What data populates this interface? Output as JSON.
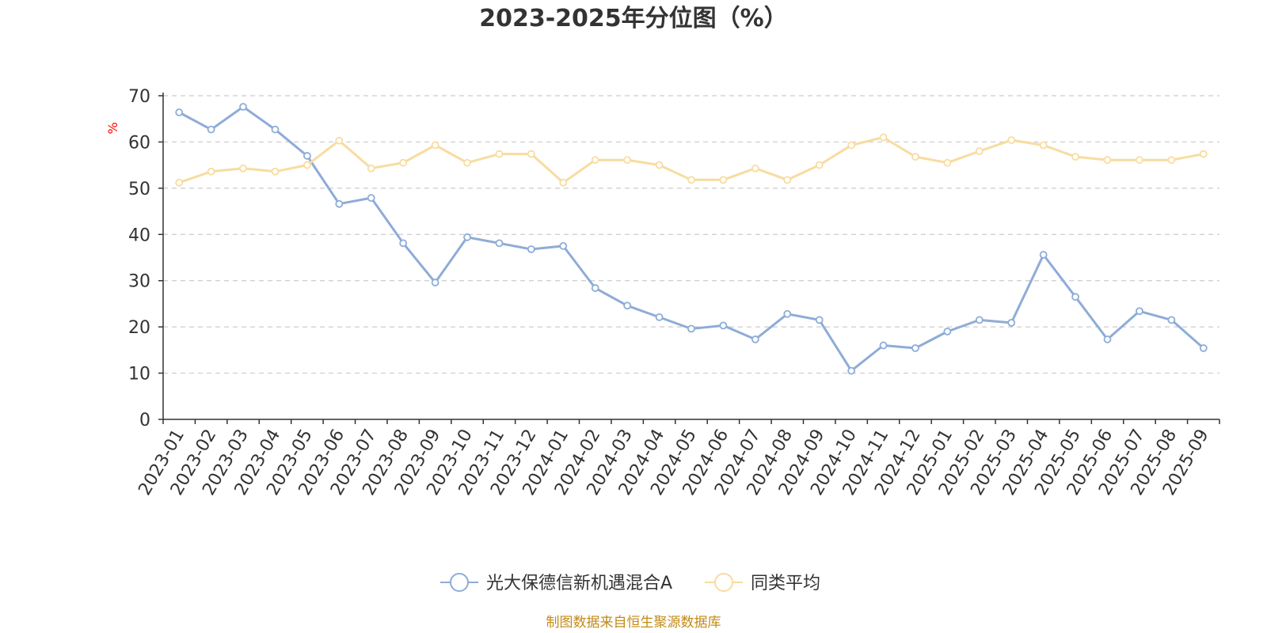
{
  "chart_data": {
    "type": "line",
    "title": "2023-2025年分位图（%）",
    "ylabel": "%",
    "xlabel": "",
    "ylim": [
      0,
      70
    ],
    "yticks": [
      0,
      10,
      20,
      30,
      40,
      50,
      60,
      70
    ],
    "grid": true,
    "legend_position": "bottom-center",
    "categories": [
      "2023-01",
      "2023-02",
      "2023-03",
      "2023-04",
      "2023-05",
      "2023-06",
      "2023-07",
      "2023-08",
      "2023-09",
      "2023-10",
      "2023-11",
      "2023-12",
      "2024-01",
      "2024-02",
      "2024-03",
      "2024-04",
      "2024-05",
      "2024-06",
      "2024-07",
      "2024-08",
      "2024-09",
      "2024-10",
      "2024-11",
      "2024-12",
      "2025-01",
      "2025-02",
      "2025-03",
      "2025-04",
      "2025-05",
      "2025-06",
      "2025-07",
      "2025-08",
      "2025-09"
    ],
    "series": [
      {
        "name": "光大保德信新机遇混合A",
        "color": "#8eacd8",
        "values": [
          66.4,
          62.7,
          67.6,
          62.7,
          57.0,
          46.6,
          47.9,
          38.1,
          29.6,
          39.4,
          38.1,
          36.8,
          37.5,
          28.4,
          24.6,
          22.1,
          19.6,
          20.3,
          17.3,
          22.8,
          21.5,
          10.5,
          16.0,
          15.4,
          19.0,
          21.5,
          20.9,
          35.6,
          26.5,
          17.3,
          23.4,
          21.5,
          15.4
        ]
      },
      {
        "name": "同类平均",
        "color": "#f8dc9f",
        "values": [
          51.2,
          53.6,
          54.3,
          53.6,
          55.0,
          60.3,
          54.3,
          55.5,
          59.3,
          55.5,
          57.4,
          57.4,
          51.2,
          56.1,
          56.1,
          55.0,
          51.8,
          51.8,
          54.3,
          51.8,
          55.0,
          59.3,
          61.0,
          56.8,
          55.5,
          58.0,
          60.4,
          59.3,
          56.8,
          56.1,
          56.1,
          56.1,
          57.4
        ]
      }
    ]
  },
  "source": "制图数据来自恒生聚源数据库"
}
